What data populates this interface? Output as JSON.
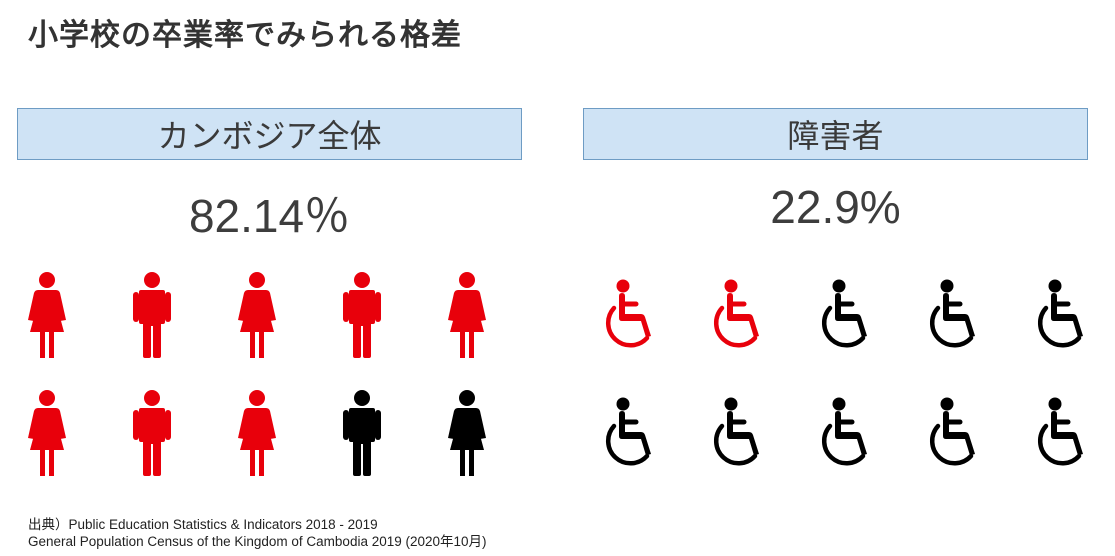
{
  "title": "小学校の卒業率でみられる格差",
  "left_panel": {
    "header": "カンボジア全体",
    "rate": "82.14％",
    "graduation_rate_percent": 82.14,
    "icons_filled": 8,
    "icons_total": 10,
    "icon_sequence": [
      "woman-icon",
      "man-icon",
      "woman-icon",
      "man-icon",
      "woman-icon",
      "woman-icon",
      "man-icon",
      "woman-icon",
      "man-icon",
      "woman-icon"
    ]
  },
  "right_panel": {
    "header": "障害者",
    "rate": "22.9%",
    "graduation_rate_percent": 22.9,
    "icons_filled": 2,
    "icons_total": 10,
    "icon_sequence": [
      "wheelchair-icon",
      "wheelchair-icon",
      "wheelchair-icon",
      "wheelchair-icon",
      "wheelchair-icon",
      "wheelchair-icon",
      "wheelchair-icon",
      "wheelchair-icon",
      "wheelchair-icon",
      "wheelchair-icon"
    ]
  },
  "colors": {
    "highlight": "#e8000b",
    "base": "#000000",
    "header_bg": "#cfe3f5",
    "header_border": "#6e9cc4"
  },
  "source": {
    "line1": "出典）Public Education Statistics & Indicators 2018 - 2019",
    "line2": "General Population Census of the Kingdom of Cambodia 2019 (2020年10月)"
  }
}
